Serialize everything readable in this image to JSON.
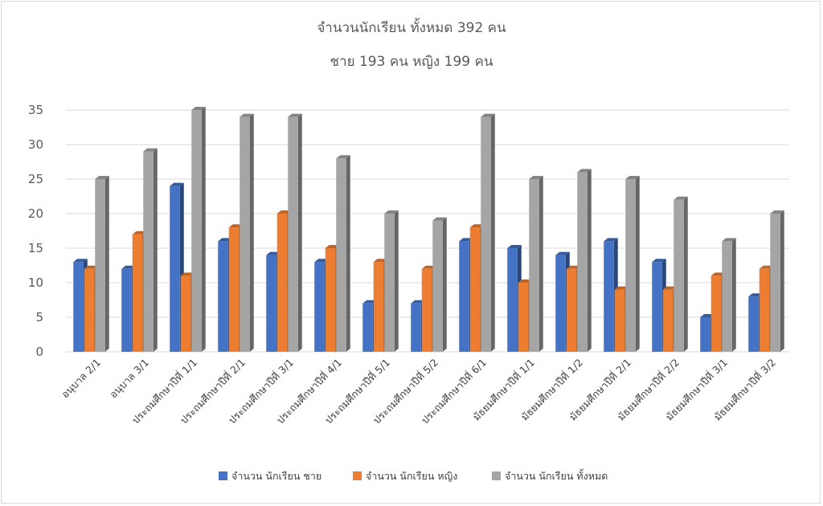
{
  "chart_data": {
    "type": "bar",
    "title": "จำนวนนักเรียน ทั้งหมด 392 คน",
    "subtitle": "ชาย 193 คน หญิง 199 คน",
    "categories": [
      "อนุบาล 2/1",
      "อนุบาล 3/1",
      "ประถมศึกษาปีที่ 1/1",
      "ประถมศึกษาปีที่ 2/1",
      "ประถมศึกษาปีที่ 3/1",
      "ประถมศึกษาปีที่ 4/1",
      "ประถมศึกษาปีที่ 5/1",
      "ประถมศึกษาปีที่ 5/2",
      "ประถมศึกษาปีที่ 6/1",
      "มัธยมศึกษาปีที่ 1/1",
      "มัธยมศึกษาปีที่ 1/2",
      "มัธยมศึกษาปีที่ 2/1",
      "มัธยมศึกษาปีที่ 2/2",
      "มัธยมศึกษาปีที่ 3/1",
      "มัธยมศึกษาปีที่ 3/2"
    ],
    "series": [
      {
        "name": "จำนวน นักเรียน ชาย",
        "color": "#4472c4",
        "values": [
          13,
          12,
          24,
          16,
          14,
          13,
          7,
          7,
          16,
          15,
          14,
          16,
          13,
          5,
          8
        ]
      },
      {
        "name": "จำนวน นักเรียน หญิง",
        "color": "#ed7d31",
        "values": [
          12,
          17,
          11,
          18,
          20,
          15,
          13,
          12,
          18,
          10,
          12,
          9,
          9,
          11,
          12
        ]
      },
      {
        "name": "จำนวน นักเรียน ทั้งหมด",
        "color": "#a5a5a5",
        "values": [
          25,
          29,
          35,
          34,
          34,
          28,
          20,
          19,
          34,
          25,
          26,
          25,
          22,
          16,
          20
        ]
      }
    ],
    "ylim": [
      0,
      35
    ],
    "yticks": [
      0,
      5,
      10,
      15,
      20,
      25,
      30,
      35
    ],
    "grid": true,
    "legend_position": "bottom",
    "style": "3d-clustered-column"
  }
}
